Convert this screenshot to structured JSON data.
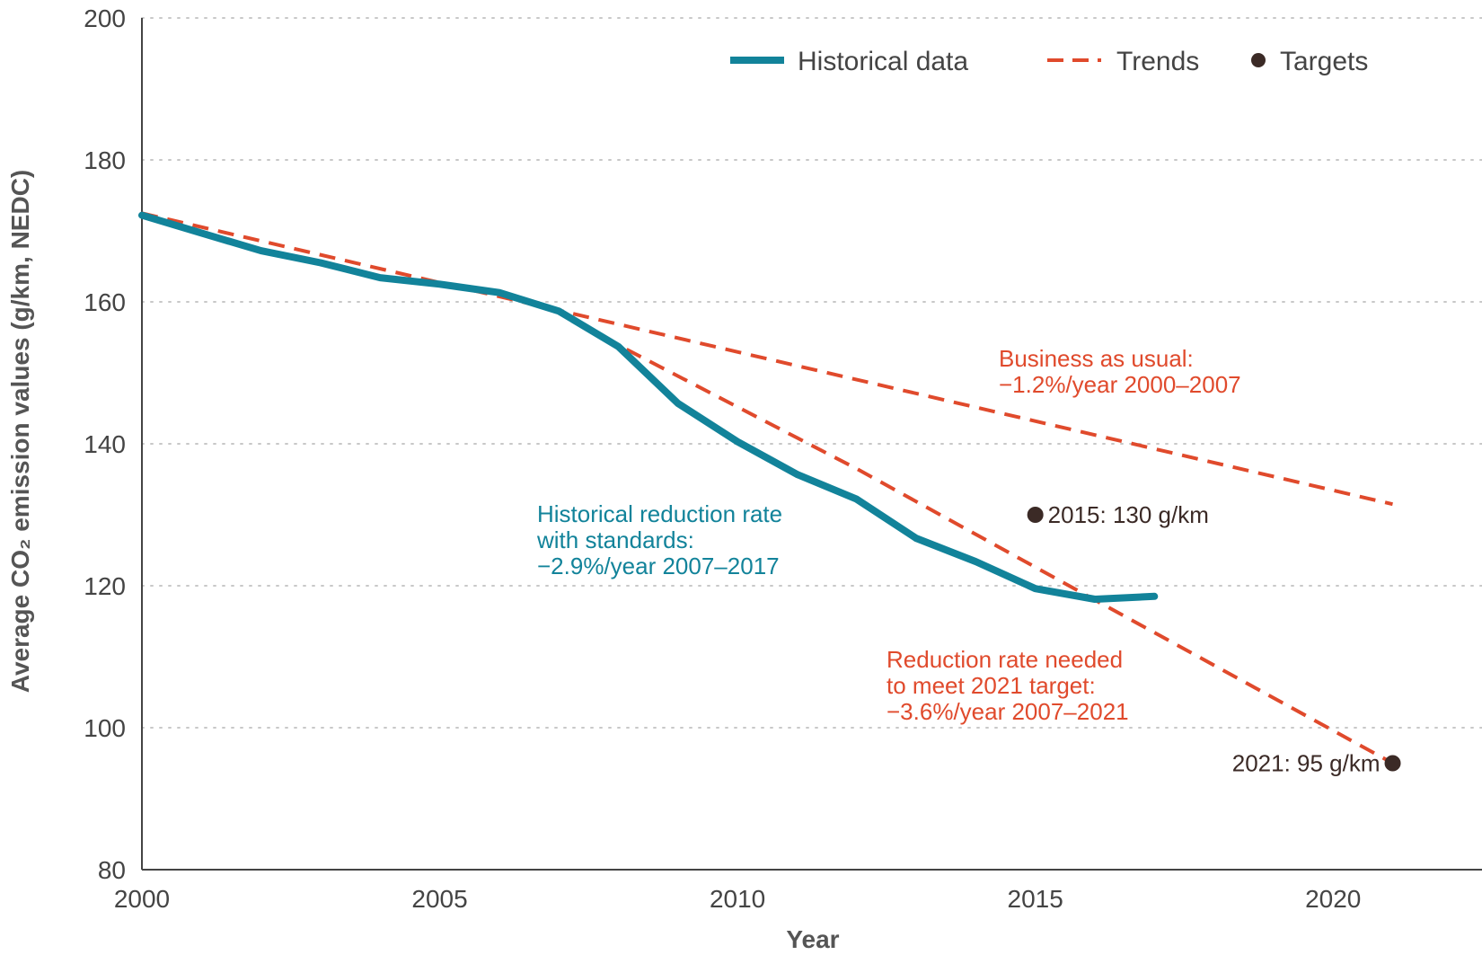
{
  "colors": {
    "historical": "#12839a",
    "trend": "#e04a2c",
    "target": "#3b2a26",
    "grid": "#c8c8c8",
    "axis": "#444444"
  },
  "chart_data": {
    "type": "line",
    "xlabel": "Year",
    "ylabel": "Average CO₂ emission values (g/km, NEDC)",
    "xlim": [
      2000,
      2022.5
    ],
    "ylim": [
      80,
      200
    ],
    "x_ticks": [
      "2000",
      "2005",
      "2010",
      "2015",
      "2020"
    ],
    "y_ticks": [
      "80",
      "100",
      "120",
      "140",
      "160",
      "180",
      "200"
    ],
    "grid": "horizontal-dotted",
    "legend": {
      "placement": "top-right",
      "items": [
        {
          "label": "Historical data",
          "style": "solid"
        },
        {
          "label": "Trends",
          "style": "dashed"
        },
        {
          "label": "Targets",
          "style": "dot"
        }
      ]
    },
    "series": [
      {
        "name": "Historical data",
        "style": "solid",
        "x": [
          2000,
          2001,
          2002,
          2003,
          2004,
          2005,
          2006,
          2007,
          2008,
          2009,
          2010,
          2011,
          2012,
          2013,
          2014,
          2015,
          2016,
          2017
        ],
        "y": [
          172.2,
          169.7,
          167.2,
          165.5,
          163.4,
          162.5,
          161.3,
          158.7,
          153.7,
          145.7,
          140.3,
          135.7,
          132.2,
          126.7,
          123.4,
          119.6,
          118.1,
          118.5
        ]
      },
      {
        "name": "Business as usual trend",
        "style": "dashed",
        "x": [
          2000,
          2007,
          2021
        ],
        "y": [
          172.5,
          158.8,
          131.5
        ]
      },
      {
        "name": "Required reduction trend",
        "style": "dashed",
        "x": [
          2007,
          2008,
          2012,
          2016,
          2021
        ],
        "y": [
          158.8,
          153.9,
          136.5,
          118.0,
          95.0
        ]
      }
    ],
    "targets": [
      {
        "x": 2015,
        "y": 130,
        "label": "2015: 130 g/km"
      },
      {
        "x": 2021,
        "y": 95,
        "label": "2021: 95 g/km"
      }
    ],
    "annotations": {
      "bau": [
        "Business as usual:",
        "−1.2%/year 2000–2007"
      ],
      "historical": [
        "Historical reduction rate",
        "with standards:",
        "−2.9%/year 2007–2017"
      ],
      "needed": [
        "Reduction rate needed",
        "to meet 2021 target:",
        "−3.6%/year 2007–2021"
      ]
    }
  }
}
